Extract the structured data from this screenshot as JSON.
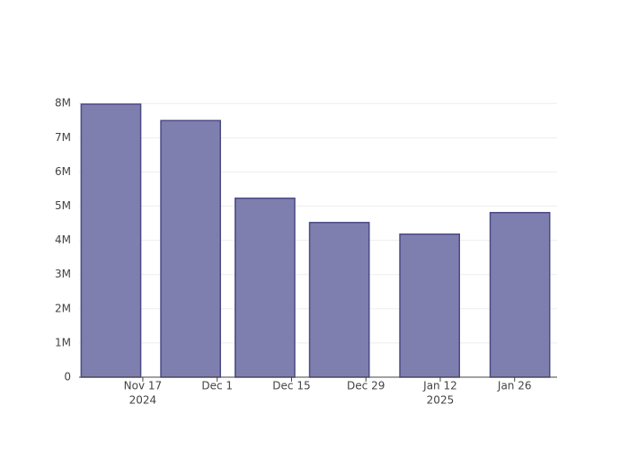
{
  "chart_data": {
    "type": "bar",
    "x": [
      "2024-11-11",
      "2024-11-26",
      "2024-12-10",
      "2024-12-24",
      "2025-01-10",
      "2025-01-27"
    ],
    "values": [
      7980000,
      7500000,
      5230000,
      4520000,
      4180000,
      4810000
    ],
    "bar_width_days": 11.2,
    "color": "#7f7faf",
    "edgecolor": "#4a4a86",
    "xlim": [
      "2024-11-05",
      "2025-02-03"
    ],
    "xticks": [
      {
        "value": "2024-11-17",
        "label": "Nov 17",
        "year": "2024"
      },
      {
        "value": "2024-12-01",
        "label": "Dec 1"
      },
      {
        "value": "2024-12-15",
        "label": "Dec 15"
      },
      {
        "value": "2024-12-29",
        "label": "Dec 29"
      },
      {
        "value": "2025-01-12",
        "label": "Jan 12",
        "year": "2025"
      },
      {
        "value": "2025-01-26",
        "label": "Jan 26"
      }
    ],
    "ylim": [
      0,
      8400000
    ],
    "yticks": [
      0,
      {
        "value": 1000000,
        "label": "1M"
      },
      {
        "value": 2000000,
        "label": "2M"
      },
      {
        "value": 3000000,
        "label": "3M"
      },
      {
        "value": 4000000,
        "label": "4M"
      },
      {
        "value": 5000000,
        "label": "5M"
      },
      {
        "value": 6000000,
        "label": "6M"
      },
      {
        "value": 7000000,
        "label": "7M"
      },
      {
        "value": 8000000,
        "label": "8M"
      }
    ],
    "grid": true
  }
}
